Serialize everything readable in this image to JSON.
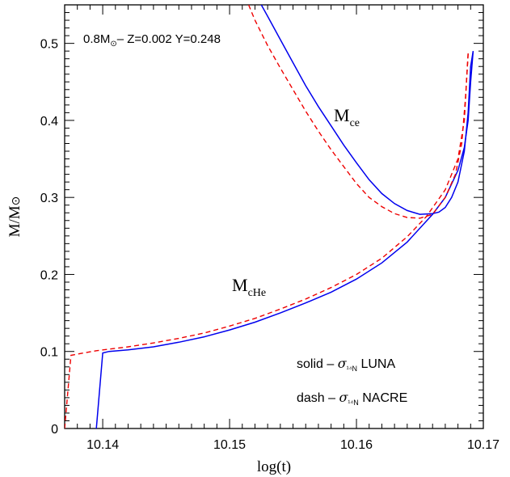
{
  "chart_data": {
    "type": "line",
    "xlabel": "log(t)",
    "ylabel": "M/M⊙",
    "xlim": [
      10.137,
      10.17
    ],
    "ylim": [
      0,
      0.55
    ],
    "x_ticks": [
      10.14,
      10.15,
      10.16,
      10.17
    ],
    "x_tick_labels": [
      "10.14",
      "10.15",
      "10.16",
      "10.17"
    ],
    "y_ticks": [
      0,
      0.1,
      0.2,
      0.3,
      0.4,
      0.5
    ],
    "y_tick_labels": [
      "0",
      "0.1",
      "0.2",
      "0.3",
      "0.4",
      "0.5"
    ],
    "annotation_params": "0.8M⊙– Z=0.002 Y=0.248",
    "label_mce": "Mce",
    "label_mche": "McHe",
    "legend": [
      {
        "text": "solid – σ¹⁴N LUNA",
        "style": "solid"
      },
      {
        "text": "dash – σ¹⁴N NACRE",
        "style": "dash"
      }
    ],
    "colors": {
      "luna": "#0000ee",
      "nacre": "#ee0000"
    },
    "series": [
      {
        "name": "McHe LUNA",
        "color": "#0000ee",
        "dash": false,
        "points": [
          [
            10.1372,
            -0.02
          ],
          [
            10.1395,
            0.0
          ],
          [
            10.14,
            0.098
          ],
          [
            10.1405,
            0.1
          ],
          [
            10.142,
            0.102
          ],
          [
            10.144,
            0.106
          ],
          [
            10.146,
            0.112
          ],
          [
            10.148,
            0.119
          ],
          [
            10.15,
            0.128
          ],
          [
            10.152,
            0.138
          ],
          [
            10.154,
            0.15
          ],
          [
            10.156,
            0.163
          ],
          [
            10.158,
            0.177
          ],
          [
            10.16,
            0.194
          ],
          [
            10.162,
            0.215
          ],
          [
            10.164,
            0.242
          ],
          [
            10.166,
            0.278
          ],
          [
            10.167,
            0.3
          ],
          [
            10.168,
            0.335
          ],
          [
            10.1685,
            0.365
          ],
          [
            10.1688,
            0.4
          ],
          [
            10.169,
            0.45
          ],
          [
            10.1692,
            0.49
          ]
        ]
      },
      {
        "name": "McHe NACRE",
        "color": "#ee0000",
        "dash": true,
        "points": [
          [
            10.137,
            0.0
          ],
          [
            10.1375,
            0.095
          ],
          [
            10.1385,
            0.098
          ],
          [
            10.1395,
            0.101
          ],
          [
            10.142,
            0.106
          ],
          [
            10.144,
            0.111
          ],
          [
            10.146,
            0.117
          ],
          [
            10.148,
            0.124
          ],
          [
            10.15,
            0.133
          ],
          [
            10.152,
            0.143
          ],
          [
            10.154,
            0.155
          ],
          [
            10.156,
            0.168
          ],
          [
            10.158,
            0.183
          ],
          [
            10.16,
            0.2
          ],
          [
            10.162,
            0.221
          ],
          [
            10.164,
            0.249
          ],
          [
            10.1655,
            0.275
          ],
          [
            10.167,
            0.31
          ],
          [
            10.168,
            0.35
          ],
          [
            10.1685,
            0.4
          ],
          [
            10.1688,
            0.487
          ]
        ]
      },
      {
        "name": "Mce LUNA",
        "color": "#0000ee",
        "dash": false,
        "points": [
          [
            10.1525,
            0.55
          ],
          [
            10.153,
            0.535
          ],
          [
            10.154,
            0.505
          ],
          [
            10.155,
            0.475
          ],
          [
            10.156,
            0.445
          ],
          [
            10.157,
            0.418
          ],
          [
            10.158,
            0.393
          ],
          [
            10.159,
            0.368
          ],
          [
            10.16,
            0.345
          ],
          [
            10.161,
            0.323
          ],
          [
            10.162,
            0.305
          ],
          [
            10.163,
            0.292
          ],
          [
            10.164,
            0.283
          ],
          [
            10.165,
            0.278
          ],
          [
            10.166,
            0.279
          ],
          [
            10.1665,
            0.281
          ],
          [
            10.167,
            0.287
          ],
          [
            10.1675,
            0.3
          ],
          [
            10.168,
            0.32
          ],
          [
            10.1685,
            0.36
          ],
          [
            10.1688,
            0.41
          ],
          [
            10.169,
            0.47
          ],
          [
            10.1692,
            0.49
          ]
        ]
      },
      {
        "name": "Mce NACRE",
        "color": "#ee0000",
        "dash": true,
        "points": [
          [
            10.1515,
            0.55
          ],
          [
            10.152,
            0.53
          ],
          [
            10.153,
            0.497
          ],
          [
            10.154,
            0.468
          ],
          [
            10.155,
            0.44
          ],
          [
            10.156,
            0.412
          ],
          [
            10.157,
            0.386
          ],
          [
            10.158,
            0.362
          ],
          [
            10.159,
            0.34
          ],
          [
            10.16,
            0.318
          ],
          [
            10.161,
            0.3
          ],
          [
            10.162,
            0.288
          ],
          [
            10.163,
            0.279
          ],
          [
            10.164,
            0.274
          ],
          [
            10.165,
            0.273
          ],
          [
            10.166,
            0.278
          ],
          [
            10.167,
            0.3
          ],
          [
            10.1678,
            0.33
          ],
          [
            10.1683,
            0.37
          ],
          [
            10.1686,
            0.43
          ],
          [
            10.1688,
            0.487
          ]
        ]
      }
    ]
  }
}
